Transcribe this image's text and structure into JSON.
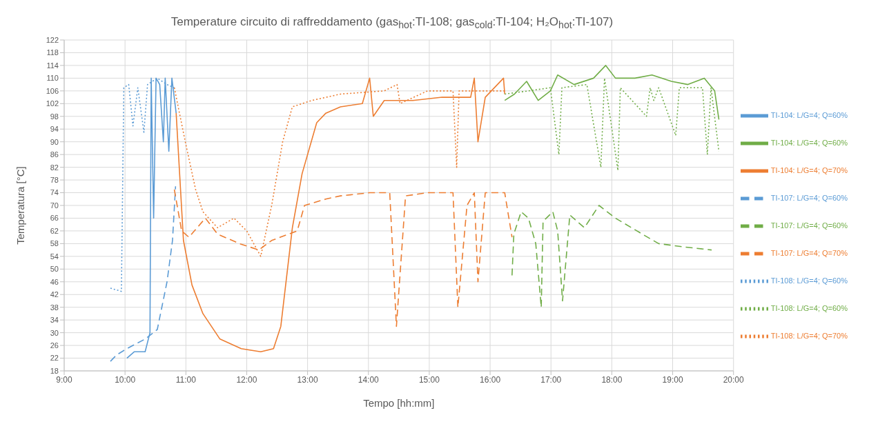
{
  "chart_data": {
    "type": "line",
    "title": "Temperature circuito di raffreddamento (gas$_{hot}$:TI-108; gas$_{cold}$:TI-104; H₂O$_{hot}$:TI-107)",
    "xlabel": "Tempo [hh:mm]",
    "ylabel": "Temperatura [°C]",
    "xlim": [
      9,
      20
    ],
    "xticks": [
      {
        "value": 9,
        "label": "9:00"
      },
      {
        "value": 10,
        "label": "10:00"
      },
      {
        "value": 11,
        "label": "11:00"
      },
      {
        "value": 12,
        "label": "12:00"
      },
      {
        "value": 13,
        "label": "13:00"
      },
      {
        "value": 14,
        "label": "14:00"
      },
      {
        "value": 15,
        "label": "15:00"
      },
      {
        "value": 16,
        "label": "16:00"
      },
      {
        "value": 17,
        "label": "17:00"
      },
      {
        "value": 18,
        "label": "18:00"
      },
      {
        "value": 19,
        "label": "19:00"
      },
      {
        "value": 20,
        "label": "20:00"
      }
    ],
    "ylim": [
      18,
      122
    ],
    "yticks": [
      18,
      22,
      26,
      30,
      34,
      38,
      42,
      46,
      50,
      54,
      58,
      62,
      66,
      70,
      74,
      78,
      82,
      86,
      90,
      94,
      98,
      102,
      106,
      110,
      114,
      118,
      122
    ],
    "grid": true,
    "legend": "right",
    "marker": "none",
    "series": [
      {
        "name": "TI-108: L/G=4; Q=60%",
        "color": "#5b9bd5",
        "line_style": "dotted",
        "x": [
          9.76,
          9.94,
          9.98,
          10.06,
          10.13,
          10.21,
          10.31,
          10.37,
          10.53,
          10.69,
          10.81
        ],
        "values": [
          44,
          43,
          107,
          108,
          95,
          107,
          93,
          108,
          110,
          108,
          107
        ]
      },
      {
        "name": "TI-107: L/G=4; Q=60%",
        "color": "#5b9bd5",
        "line_style": "dashed",
        "x": [
          9.76,
          9.86,
          10.03,
          10.33,
          10.53,
          10.69,
          10.78,
          10.83
        ],
        "values": [
          21,
          23,
          25,
          28,
          31,
          46,
          59,
          76
        ]
      },
      {
        "name": "TI-104: L/G=4; Q=60%",
        "color": "#5b9bd5",
        "line_style": "solid",
        "x": [
          10.03,
          10.15,
          10.33,
          10.41,
          10.43,
          10.47,
          10.51,
          10.57,
          10.63,
          10.66,
          10.72,
          10.77,
          10.84
        ],
        "values": [
          22,
          24,
          24,
          30,
          110,
          66,
          110,
          108,
          90,
          110,
          87,
          110,
          99
        ]
      },
      {
        "name": "TI-108: L/G=4; Q=70%",
        "color": "#ed7d31",
        "line_style": "dotted",
        "x": [
          10.81,
          10.99,
          11.16,
          11.28,
          11.52,
          11.79,
          12.0,
          12.23,
          12.41,
          12.59,
          12.75,
          13.07,
          13.54,
          14.26,
          14.47,
          14.52,
          14.97,
          15.39,
          15.45,
          15.49,
          16.24
        ],
        "values": [
          107,
          90,
          75,
          68,
          63,
          66,
          62,
          54,
          70,
          90,
          101,
          103,
          105,
          106,
          108,
          102,
          106,
          106,
          82,
          106,
          106
        ]
      },
      {
        "name": "TI-107: L/G=4; Q=70%",
        "color": "#ed7d31",
        "line_style": "dashed",
        "x": [
          10.81,
          10.93,
          11.05,
          11.32,
          11.52,
          11.88,
          12.2,
          12.41,
          12.83,
          12.95,
          13.3,
          13.54,
          14.02,
          14.35,
          14.46,
          14.61,
          14.97,
          15.39,
          15.47,
          15.62,
          15.74,
          15.8,
          15.92,
          16.24,
          16.36
        ],
        "values": [
          75,
          62,
          60,
          66,
          61,
          58,
          56,
          59,
          62,
          70,
          72,
          73,
          74,
          74,
          32,
          73,
          74,
          74,
          38,
          70,
          74,
          46,
          74,
          74,
          60
        ]
      },
      {
        "name": "TI-104: L/G=4; Q=70%",
        "color": "#ed7d31",
        "line_style": "solid",
        "x": [
          10.84,
          10.96,
          11.1,
          11.28,
          11.56,
          11.91,
          12.23,
          12.44,
          12.56,
          12.75,
          12.91,
          13.15,
          13.3,
          13.54,
          13.9,
          14.02,
          14.08,
          14.26,
          14.73,
          15.21,
          15.68,
          15.74,
          15.8,
          15.92,
          16.22,
          16.24
        ],
        "values": [
          99,
          59,
          45,
          36,
          28,
          25,
          24,
          25,
          32,
          63,
          80,
          96,
          99,
          101,
          102,
          110,
          98,
          103,
          103,
          104,
          104,
          110,
          90,
          104,
          110,
          105
        ]
      },
      {
        "name": "TI-108: L/G=4; Q=60%",
        "color": "#70ad47",
        "line_style": "dotted",
        "x": [
          16.24,
          16.63,
          16.99,
          17.13,
          17.18,
          17.59,
          17.82,
          17.88,
          18.1,
          18.14,
          18.57,
          18.63,
          18.69,
          18.77,
          19.05,
          19.11,
          19.49,
          19.57,
          19.63,
          19.76
        ],
        "values": [
          105,
          106,
          107,
          86,
          107,
          108,
          82,
          110,
          81,
          107,
          98,
          107,
          103,
          107,
          92,
          107,
          107,
          86,
          107,
          87
        ]
      },
      {
        "name": "TI-107: L/G=4; Q=60%",
        "color": "#70ad47",
        "line_style": "dashed",
        "x": [
          16.36,
          16.39,
          16.51,
          16.63,
          16.75,
          16.84,
          16.87,
          17.03,
          17.11,
          17.19,
          17.31,
          17.55,
          17.79,
          18.06,
          18.5,
          18.77,
          19.17,
          19.64
        ],
        "values": [
          48,
          61,
          68,
          66,
          58,
          38,
          65,
          68,
          62,
          40,
          67,
          63,
          70,
          66,
          61,
          58,
          57,
          56
        ]
      },
      {
        "name": "TI-104: L/G=4; Q=60%",
        "color": "#70ad47",
        "line_style": "solid",
        "x": [
          16.24,
          16.4,
          16.6,
          16.79,
          16.99,
          17.11,
          17.38,
          17.7,
          17.9,
          18.06,
          18.38,
          18.66,
          18.98,
          19.25,
          19.52,
          19.69,
          19.76
        ],
        "values": [
          103,
          105,
          109,
          103,
          106,
          111,
          108,
          110,
          114,
          110,
          110,
          111,
          109,
          108,
          110,
          106,
          97
        ]
      }
    ]
  }
}
